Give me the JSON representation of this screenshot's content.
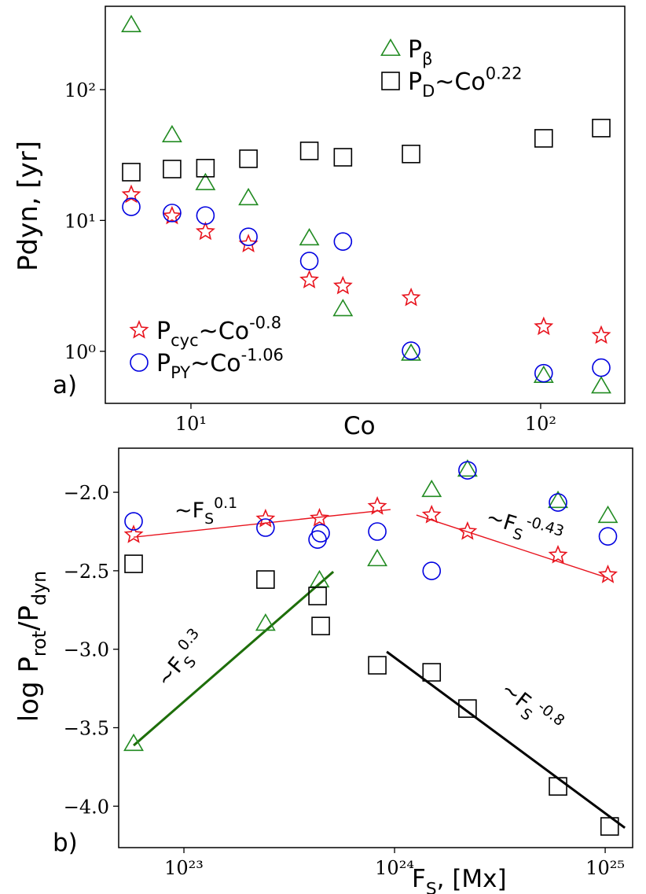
{
  "chart_data": [
    {
      "type": "scatter",
      "panel_label": "a)",
      "xlabel": [
        {
          "text": "Co"
        }
      ],
      "ylabel": [
        {
          "text": "Pdyn, [yr]"
        }
      ],
      "xscale": "log",
      "yscale": "log",
      "xlim": [
        5.69,
        174
      ],
      "ylim": [
        0.4,
        433
      ],
      "xticks": [
        {
          "value": 10,
          "label": "10¹"
        },
        {
          "value": 100,
          "label": "10²"
        }
      ],
      "yticks": [
        {
          "value": 1,
          "label": "10⁰"
        },
        {
          "value": 10,
          "label": "10¹"
        },
        {
          "value": 100,
          "label": "10²"
        }
      ],
      "x": [
        6.75,
        8.83,
        11.0,
        14.6,
        21.8,
        27.2,
        42.6,
        102,
        149
      ],
      "series": [
        {
          "name": [
            {
              "text": "P"
            },
            {
              "text": "β",
              "shift": "sub"
            }
          ],
          "marker": "triangle",
          "color": "#228b22",
          "legend": "upper right",
          "values": [
            311,
            44.8,
            19.3,
            14.8,
            7.3,
            2.1,
            0.96,
            0.65,
            0.54
          ]
        },
        {
          "name": [
            {
              "text": "P"
            },
            {
              "text": "D",
              "shift": "sub"
            },
            {
              "text": "~Co"
            },
            {
              "text": "0.22",
              "shift": "sup"
            }
          ],
          "marker": "square",
          "color": "#000000",
          "legend": "upper right",
          "values": [
            23.4,
            24.7,
            25.1,
            29.6,
            34,
            30.4,
            32.2,
            42.4,
            50.8
          ]
        },
        {
          "name": [
            {
              "text": "P"
            },
            {
              "text": "cyc",
              "shift": "sub"
            },
            {
              "text": "~Co"
            },
            {
              "text": "-0.8",
              "shift": "sup"
            }
          ],
          "marker": "star",
          "color": "#e8141e",
          "legend": "lower left",
          "values": [
            15.7,
            10.8,
            8.2,
            6.6,
            3.5,
            3.15,
            2.56,
            1.54,
            1.32
          ]
        },
        {
          "name": [
            {
              "text": "P"
            },
            {
              "text": "PY",
              "shift": "sub"
            },
            {
              "text": "~Co"
            },
            {
              "text": "-1.06",
              "shift": "sup"
            }
          ],
          "marker": "circle",
          "color": "#0000e0",
          "legend": "lower left",
          "values": [
            12.7,
            11.4,
            10.9,
            7.5,
            4.9,
            6.9,
            1.01,
            0.68,
            0.75
          ]
        }
      ]
    },
    {
      "type": "scatter",
      "panel_label": "b)",
      "xlabel": [
        {
          "text": "F"
        },
        {
          "text": "S",
          "shift": "sub"
        },
        {
          "text": ", [Mx]"
        }
      ],
      "ylabel": [
        {
          "text": "log P"
        },
        {
          "text": "rot",
          "shift": "sub"
        },
        {
          "text": "/P"
        },
        {
          "text": "dyn",
          "shift": "sub"
        }
      ],
      "xscale": "log",
      "yscale": "linear",
      "xlim": [
        4.9e+22,
        1.35e+25
      ],
      "ylim": [
        -4.264,
        -1.719
      ],
      "xticks": [
        {
          "value": 1e+23,
          "label": "10²³"
        },
        {
          "value": 1e+24,
          "label": "10²⁴"
        },
        {
          "value": 1e+25,
          "label": "10²⁵"
        }
      ],
      "yticks": [
        {
          "value": -4.0,
          "label": "−4.0"
        },
        {
          "value": -3.5,
          "label": "−3.5"
        },
        {
          "value": -3.0,
          "label": "−3.0"
        },
        {
          "value": -2.5,
          "label": "−2.5"
        },
        {
          "value": -2.0,
          "label": "−2.0"
        }
      ],
      "series": [
        {
          "marker": "triangle",
          "color": "#228b22",
          "x": [
            5.77e+22,
            2.44e+23,
            4.4e+23,
            8.28e+23,
            1.5e+24,
            2.22e+24,
            5.97e+24,
            1.03e+25
          ],
          "values": [
            -3.603,
            -2.837,
            -2.561,
            -2.426,
            -1.985,
            -1.855,
            -2.055,
            -2.15
          ]
        },
        {
          "marker": "square",
          "color": "#000000",
          "x": [
            5.77e+22,
            2.44e+23,
            4.31e+23,
            4.46e+23,
            8.28e+23,
            1.5e+24,
            2.22e+24,
            5.97e+24,
            1.05e+25
          ],
          "values": [
            -2.456,
            -2.556,
            -2.661,
            -2.852,
            -3.102,
            -3.147,
            -3.378,
            -3.874,
            -4.129
          ]
        },
        {
          "marker": "star",
          "color": "#e8141e",
          "x": [
            5.77e+22,
            2.44e+23,
            4.4e+23,
            8.28e+23,
            1.5e+24,
            2.22e+24,
            5.97e+24,
            1.03e+25
          ],
          "values": [
            -2.271,
            -2.17,
            -2.165,
            -2.09,
            -2.145,
            -2.25,
            -2.401,
            -2.526
          ]
        },
        {
          "marker": "circle",
          "color": "#0000e0",
          "x": [
            5.77e+22,
            2.44e+23,
            4.31e+23,
            4.46e+23,
            8.28e+23,
            1.5e+24,
            2.22e+24,
            5.97e+24,
            1.03e+25
          ],
          "values": [
            -2.185,
            -2.225,
            -2.301,
            -2.261,
            -2.25,
            -2.501,
            -1.86,
            -2.065,
            -2.281
          ]
        }
      ],
      "fits": [
        {
          "color": "#e8141e",
          "x": [
            5.77e+22,
            9.57e+23
          ],
          "y": [
            -2.286,
            -2.11
          ],
          "label": [
            {
              "text": "~F"
            },
            {
              "text": "S",
              "shift": "sub"
            },
            {
              "text": "0.1",
              "shift": "sup"
            }
          ]
        },
        {
          "color": "#e8141e",
          "x": [
            1.27e+24,
            1.03e+25
          ],
          "y": [
            -2.145,
            -2.546
          ],
          "label": [
            {
              "text": "~F"
            },
            {
              "text": "S",
              "shift": "sub"
            },
            {
              "text": "-0.43",
              "shift": "sup"
            }
          ]
        },
        {
          "color": "#1e6e0a",
          "x": [
            5.77e+22,
            5.12e+23
          ],
          "y": [
            -3.613,
            -2.506
          ],
          "label": [
            {
              "text": "~F"
            },
            {
              "text": "S",
              "shift": "sub"
            },
            {
              "text": "0.3",
              "shift": "sup"
            }
          ]
        },
        {
          "color": "#000000",
          "x": [
            9.18e+23,
            1.24e+25
          ],
          "y": [
            -3.016,
            -4.138
          ],
          "label": [
            {
              "text": "~F"
            },
            {
              "text": "S",
              "shift": "sub"
            },
            {
              "text": "-0.8",
              "shift": "sup"
            }
          ]
        }
      ]
    }
  ]
}
